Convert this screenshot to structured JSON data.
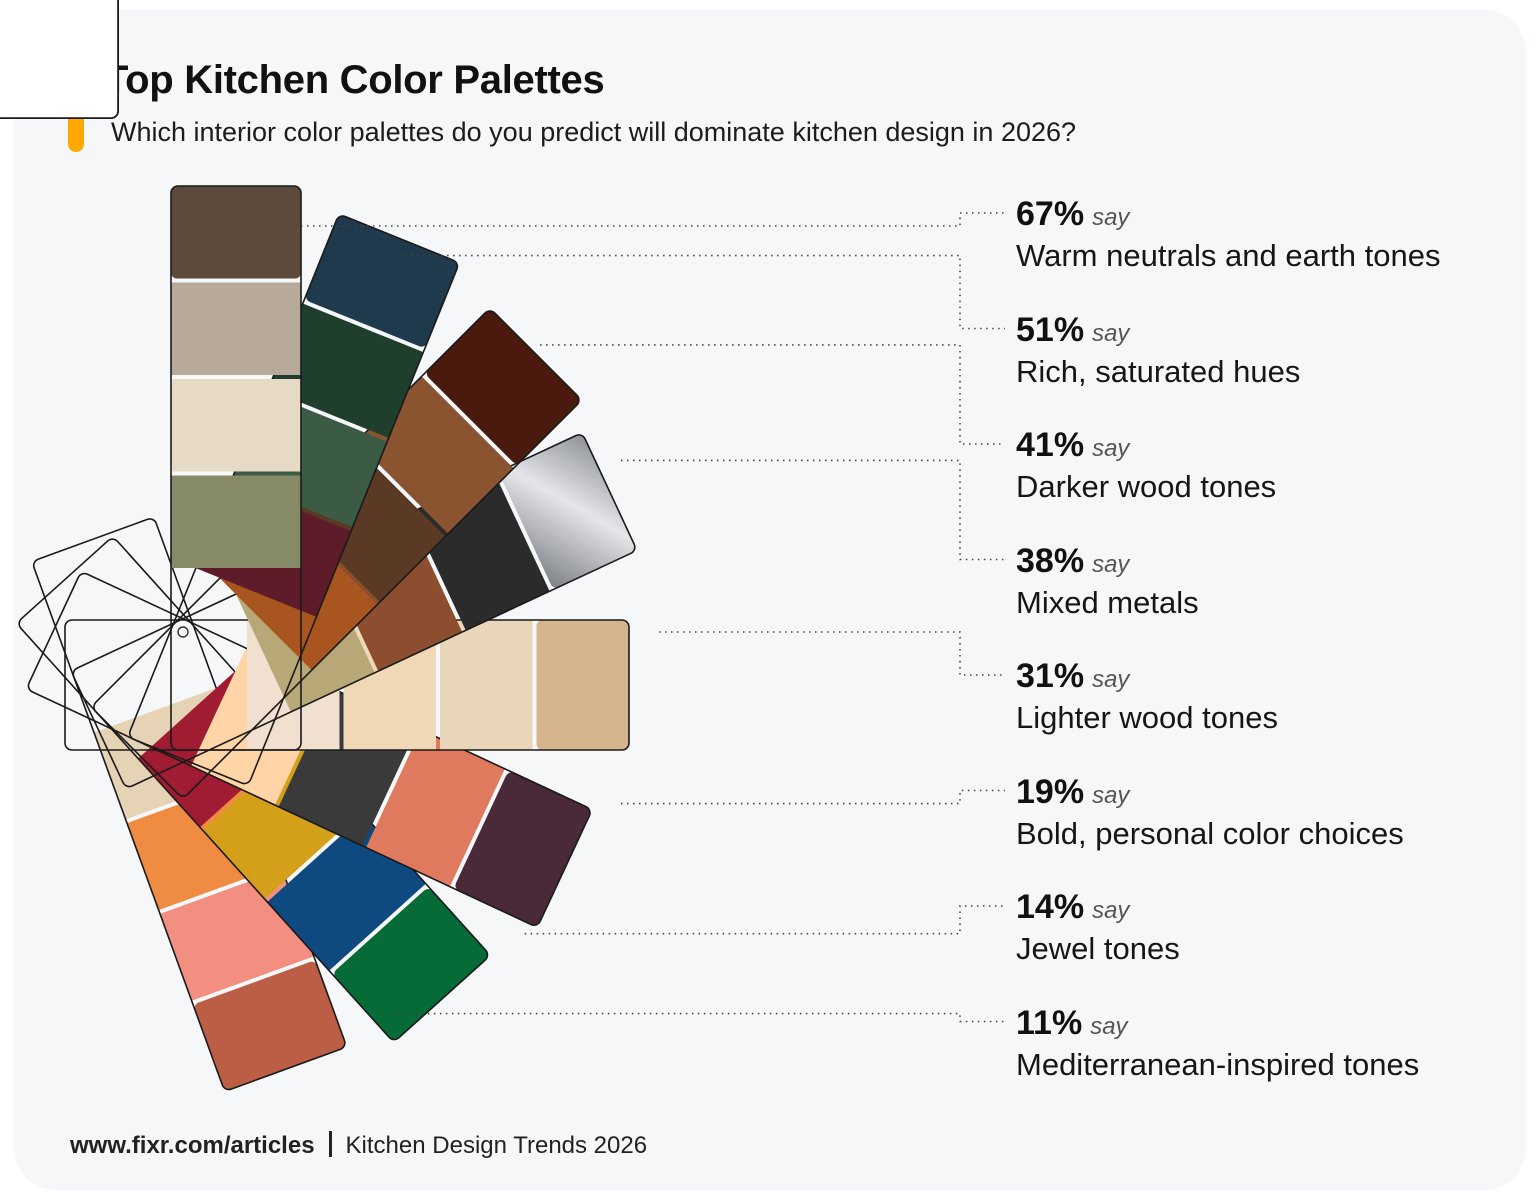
{
  "header": {
    "title": "Top Kitchen Color Palettes",
    "subtitle": "Which interior color palettes do you predict will dominate kitchen design in 2026?",
    "accent_color": "#ffa800"
  },
  "chart_data": {
    "type": "bar",
    "title": "Top Kitchen Color Palettes",
    "subtitle": "Which interior color palettes do you predict will dominate kitchen design in 2026?",
    "unit": "%",
    "value_suffix": "say",
    "categories": [
      "Warm neutrals and earth tones",
      "Rich, saturated hues",
      "Darker wood tones",
      "Mixed metals",
      "Lighter wood tones",
      "Bold, personal color choices",
      "Jewel tones",
      "Mediterranean-inspired tones"
    ],
    "values": [
      67,
      51,
      41,
      38,
      31,
      19,
      14,
      11
    ],
    "value_labels": [
      "67%",
      "51%",
      "41%",
      "38%",
      "31%",
      "19%",
      "14%",
      "11%"
    ],
    "swatch_colors": [
      [
        "#5d4a3b",
        "#b8aa9b",
        "#e6d9c6",
        "#868a67"
      ],
      [
        "#1f3a4c",
        "#1f3f2c",
        "#3c5b44",
        "#5e1c2a"
      ],
      [
        "#4a1a0e",
        "#8a5431",
        "#5a3a24",
        "#a8551f"
      ],
      [
        "#a9acb0",
        "#2b2b2b",
        "#8d4d2f",
        "#b8a878"
      ],
      [
        "#d6b58e",
        "#e9d5b8",
        "#f0d7b5",
        "#f1dfcf"
      ],
      [
        "#4a2939",
        "#e07a5f",
        "#3a3a3a",
        "#ffd4a6"
      ],
      [
        "#066b37",
        "#0e4a80",
        "#d4a01a",
        "#a01c32"
      ],
      [
        "#bb5e45",
        "#f28f80",
        "#ef8c42",
        "#e6d2b5"
      ]
    ]
  },
  "footer": {
    "url": "www.fixr.com/articles",
    "caption": "Kitchen Design Trends 2026"
  }
}
